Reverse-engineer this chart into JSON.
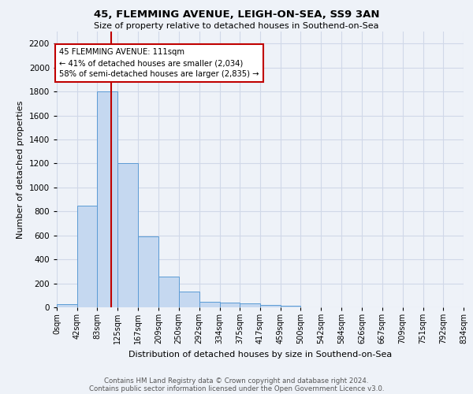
{
  "title": "45, FLEMMING AVENUE, LEIGH-ON-SEA, SS9 3AN",
  "subtitle": "Size of property relative to detached houses in Southend-on-Sea",
  "xlabel": "Distribution of detached houses by size in Southend-on-Sea",
  "ylabel": "Number of detached properties",
  "footnote1": "Contains HM Land Registry data © Crown copyright and database right 2024.",
  "footnote2": "Contains public sector information licensed under the Open Government Licence v3.0.",
  "bin_labels": [
    "0sqm",
    "42sqm",
    "83sqm",
    "125sqm",
    "167sqm",
    "209sqm",
    "250sqm",
    "292sqm",
    "334sqm",
    "375sqm",
    "417sqm",
    "459sqm",
    "500sqm",
    "542sqm",
    "584sqm",
    "626sqm",
    "667sqm",
    "709sqm",
    "751sqm",
    "792sqm",
    "834sqm"
  ],
  "bar_heights": [
    25,
    850,
    1800,
    1200,
    590,
    255,
    130,
    45,
    40,
    30,
    18,
    12,
    0,
    0,
    0,
    0,
    0,
    0,
    0,
    0,
    0
  ],
  "bar_color": "#c5d8f0",
  "bar_edge_color": "#5b9bd5",
  "grid_color": "#d0d8e8",
  "background_color": "#eef2f8",
  "vline_x": 111,
  "vline_color": "#c00000",
  "annotation_line1": "45 FLEMMING AVENUE: 111sqm",
  "annotation_line2": "← 41% of detached houses are smaller (2,034)",
  "annotation_line3": "58% of semi-detached houses are larger (2,835) →",
  "annotation_box_color": "white",
  "annotation_box_edge": "#c00000",
  "ylim": [
    0,
    2300
  ],
  "bin_edges": [
    0,
    42,
    83,
    125,
    167,
    209,
    250,
    292,
    334,
    375,
    417,
    459,
    500,
    542,
    584,
    626,
    667,
    709,
    751,
    792,
    834
  ]
}
